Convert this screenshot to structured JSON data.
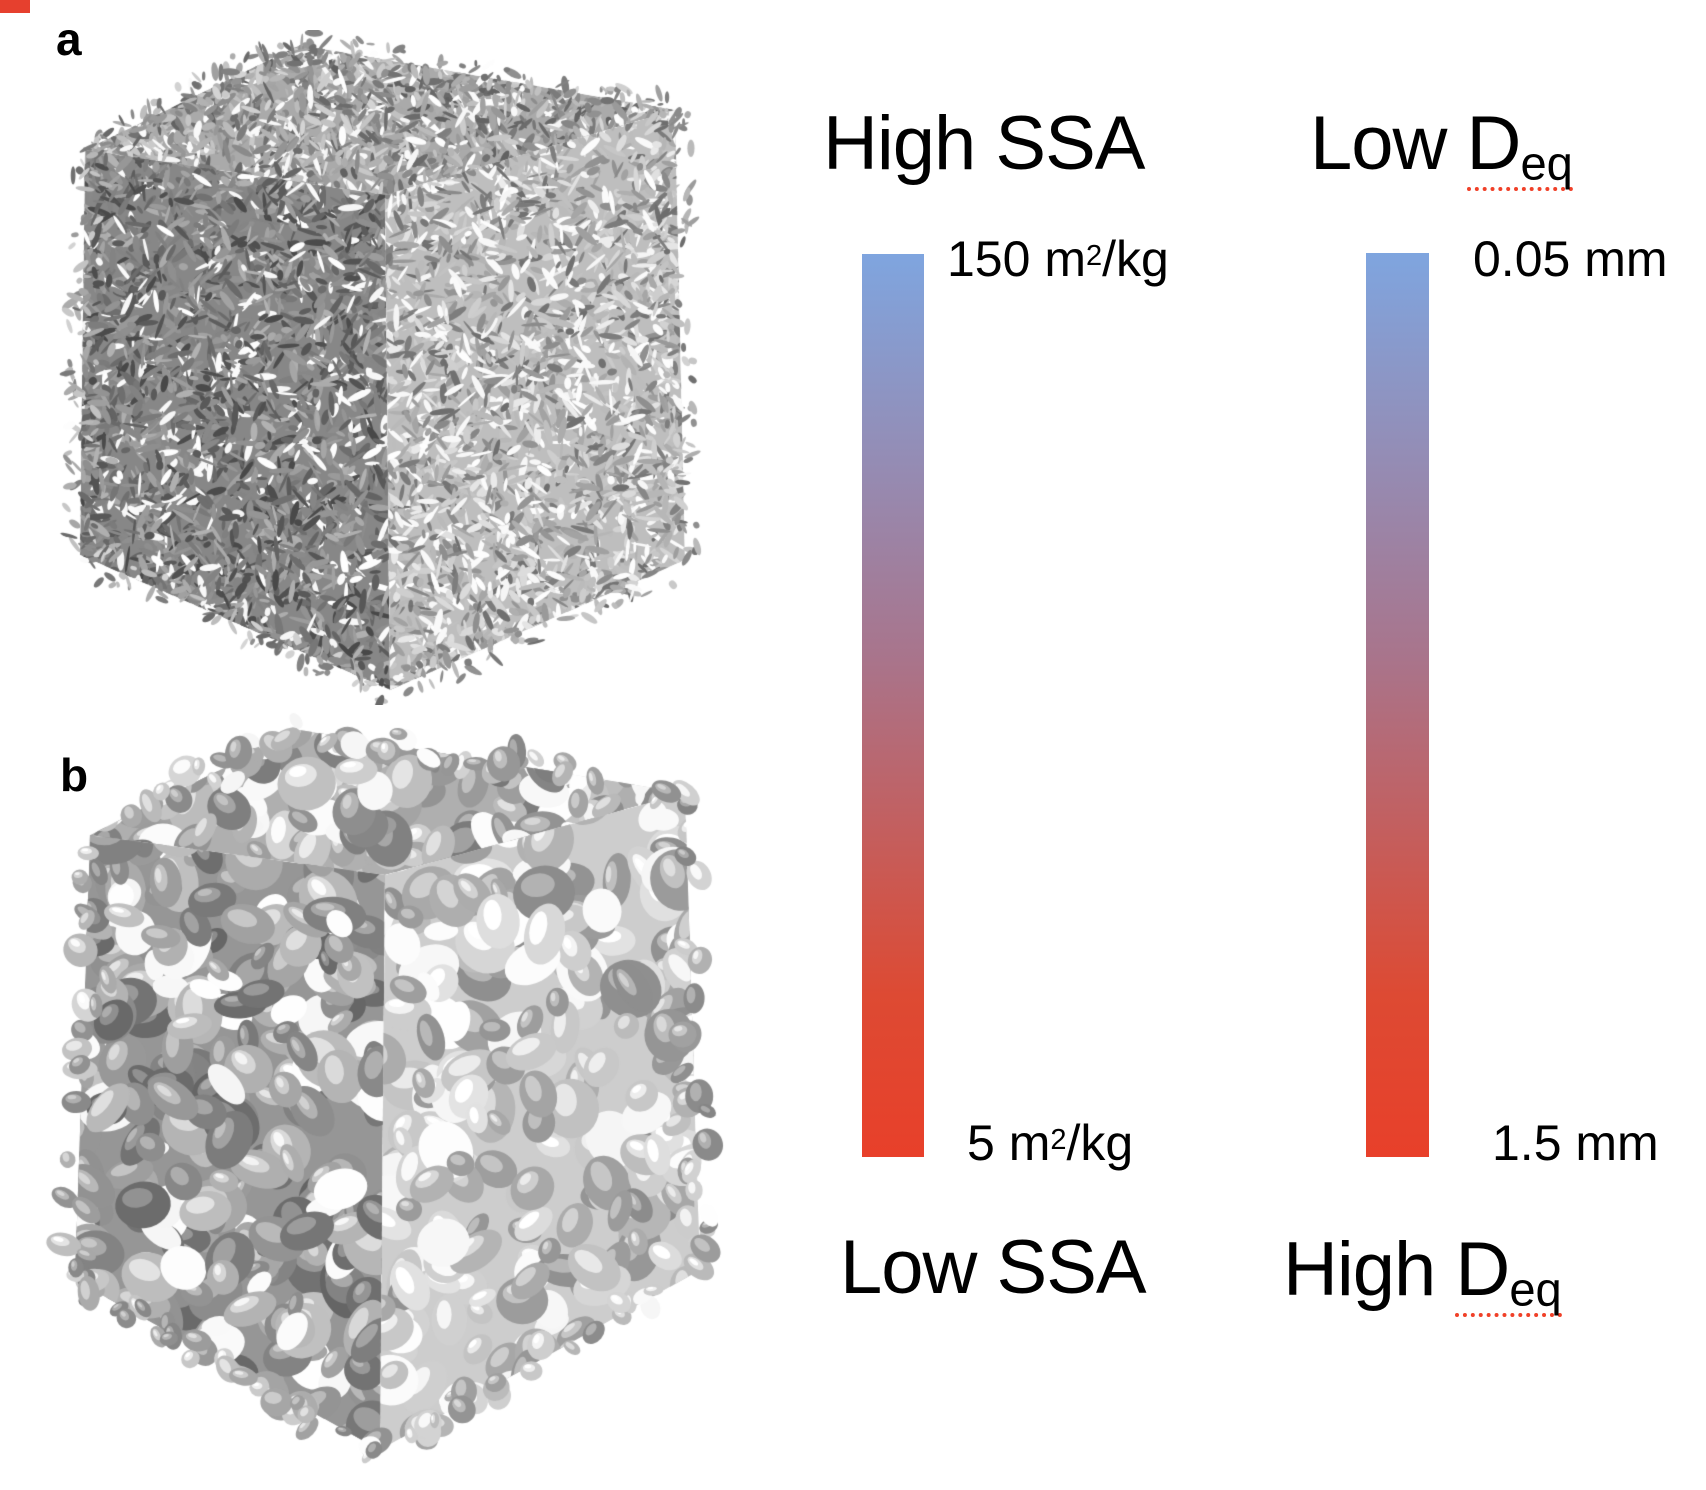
{
  "figure": {
    "background_color": "#ffffff",
    "text_color": "#000000",
    "corner_mark_color": "#e6402e",
    "misspell_underline_color": "#f04028",
    "panels": [
      {
        "label": "a"
      },
      {
        "label": "b"
      }
    ],
    "scales": [
      {
        "id": "ssa",
        "top_label": "High SSA",
        "bottom_label": "Low SSA",
        "top_value_pre": "150 m",
        "top_value_sup": "2",
        "top_value_post": "/kg",
        "bottom_value_pre": "5 m",
        "bottom_value_sup": "2",
        "bottom_value_post": "/kg",
        "top_color": "#7fa5df",
        "mid_color": "#a9748b",
        "lower_color": "#dd4a33",
        "bottom_color": "#e8402a"
      },
      {
        "id": "deq",
        "top_label_prefix": "Low ",
        "top_label_term": "D",
        "top_label_sub": "eq",
        "bottom_label_prefix": "High ",
        "bottom_label_term": "D",
        "bottom_label_sub": "eq",
        "top_value": "0.05 mm",
        "bottom_value": "1.5 mm",
        "top_color": "#7fa5df",
        "mid_color": "#a9748b",
        "lower_color": "#dd4a33",
        "bottom_color": "#e8402a"
      }
    ]
  }
}
